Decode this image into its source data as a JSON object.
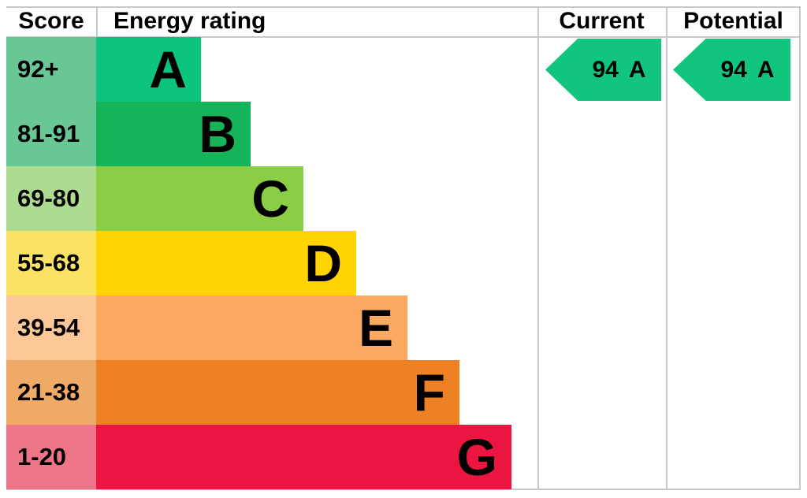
{
  "headers": {
    "score": "Score",
    "energy_rating": "Energy rating",
    "current": "Current",
    "potential": "Potential"
  },
  "bands": [
    {
      "score": "92+",
      "letter": "A",
      "color": "#0cc47e",
      "score_bg": "#69c695"
    },
    {
      "score": "81-91",
      "letter": "B",
      "color": "#16b458",
      "score_bg": "#69c695"
    },
    {
      "score": "69-80",
      "letter": "C",
      "color": "#8ccd46",
      "score_bg": "#aedb92"
    },
    {
      "score": "55-68",
      "letter": "D",
      "color": "#ffd400",
      "score_bg": "#fae264"
    },
    {
      "score": "39-54",
      "letter": "E",
      "color": "#fba861",
      "score_bg": "#fcc897"
    },
    {
      "score": "21-38",
      "letter": "F",
      "color": "#ee8124",
      "score_bg": "#f0aa68"
    },
    {
      "score": "1-20",
      "letter": "G",
      "color": "#ea1540",
      "score_bg": "#ee7488"
    }
  ],
  "current": {
    "value": "94",
    "band": "A",
    "color": "#12c57f"
  },
  "potential": {
    "value": "94",
    "band": "A",
    "color": "#12c57f"
  },
  "grid_line_color": "#c9c9c9",
  "chart_data": {
    "type": "bar",
    "orientation": "horizontal",
    "title": "Energy rating",
    "columns": [
      "Score",
      "Energy rating",
      "Current",
      "Potential"
    ],
    "categories": [
      "A",
      "B",
      "C",
      "D",
      "E",
      "F",
      "G"
    ],
    "score_ranges": [
      "92+",
      "81-91",
      "69-80",
      "55-68",
      "39-54",
      "21-38",
      "1-20"
    ],
    "bar_lengths_relative": [
      2,
      3,
      4,
      5,
      6,
      7,
      8
    ],
    "bar_colors": [
      "#0cc47e",
      "#16b458",
      "#8ccd46",
      "#ffd400",
      "#fba861",
      "#ee8124",
      "#ea1540"
    ],
    "score_cell_colors": [
      "#69c695",
      "#69c695",
      "#aedb92",
      "#fae264",
      "#fcc897",
      "#f0aa68",
      "#ee7488"
    ],
    "current_rating": {
      "score": 94,
      "band": "A"
    },
    "potential_rating": {
      "score": 94,
      "band": "A"
    },
    "legend_position": "none",
    "grid": "column-separators-only"
  }
}
